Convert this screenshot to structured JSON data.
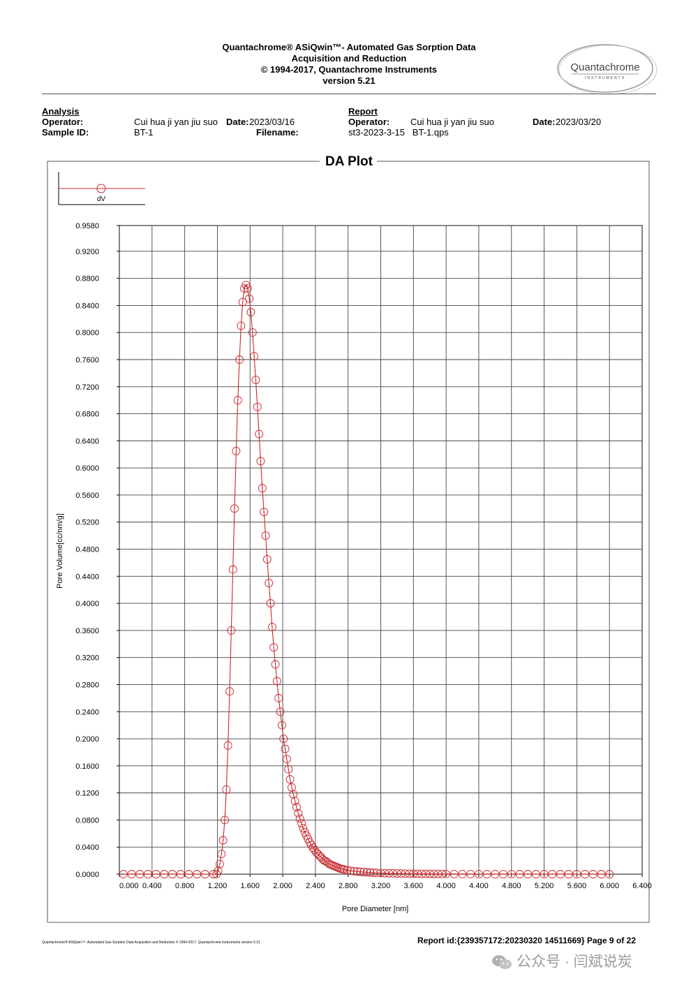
{
  "header": {
    "line1": "Quantachrome® ASiQwin™- Automated Gas Sorption Data",
    "line2": "Acquisition and Reduction",
    "line3": "© 1994-2017, Quantachrome Instruments",
    "line4": "version 5.21",
    "logo_text": "Quantachrome",
    "logo_sub": "INSTRUMENTS"
  },
  "analysis": {
    "heading": "Analysis",
    "operator_label": "Operator:",
    "operator_value": "Cui hua ji yan jiu suo",
    "date_label": "Date:",
    "date_value": "2023/03/16",
    "sample_label": "Sample ID:",
    "sample_value": "BT-1",
    "filename_label": "Filename:"
  },
  "report": {
    "heading": "Report",
    "operator_label": "Operator:",
    "operator_value": "Cui hua ji yan jiu suo",
    "date_label": "Date:",
    "date_value": "2023/03/20",
    "filename_value": "st3-2023-3-15   BT-1.qps"
  },
  "chart_data": {
    "type": "line",
    "title": "DA Plot",
    "xlabel": "Pore Diameter [nm]",
    "ylabel": "Pore Volume[cc/nm/g]",
    "legend": [
      {
        "name": "dV",
        "color": "#c8282c",
        "marker": "open-circle"
      }
    ],
    "legend_position": "top-left",
    "grid": true,
    "xlim": [
      0.0,
      6.4
    ],
    "ylim": [
      0.0,
      0.958
    ],
    "x_ticks": [
      "0.000",
      "0.400",
      "0.800",
      "1.200",
      "1.600",
      "2.000",
      "2.400",
      "2.800",
      "3.200",
      "3.600",
      "4.000",
      "4.400",
      "4.800",
      "5.200",
      "5.600",
      "6.000",
      "6.400"
    ],
    "y_ticks": [
      "0.0000",
      "0.0400",
      "0.0800",
      "0.1200",
      "0.1600",
      "0.2000",
      "0.2400",
      "0.2800",
      "0.3200",
      "0.3600",
      "0.4000",
      "0.4400",
      "0.4800",
      "0.5200",
      "0.5600",
      "0.6000",
      "0.6400",
      "0.6800",
      "0.7200",
      "0.7600",
      "0.8000",
      "0.8400",
      "0.8800",
      "0.9200",
      "0.9580"
    ],
    "series": [
      {
        "name": "dV",
        "color": "#c8282c",
        "points": [
          [
            0.05,
            0.0
          ],
          [
            0.15,
            0.0
          ],
          [
            0.25,
            0.0
          ],
          [
            0.35,
            0.0
          ],
          [
            0.45,
            0.0
          ],
          [
            0.55,
            0.0
          ],
          [
            0.65,
            0.0
          ],
          [
            0.75,
            0.0
          ],
          [
            0.85,
            0.0
          ],
          [
            0.95,
            0.0
          ],
          [
            1.05,
            0.0
          ],
          [
            1.15,
            0.0
          ],
          [
            1.19,
            0.0
          ],
          [
            1.21,
            0.005
          ],
          [
            1.23,
            0.015
          ],
          [
            1.25,
            0.03
          ],
          [
            1.27,
            0.05
          ],
          [
            1.29,
            0.08
          ],
          [
            1.31,
            0.125
          ],
          [
            1.33,
            0.19
          ],
          [
            1.35,
            0.27
          ],
          [
            1.37,
            0.36
          ],
          [
            1.39,
            0.45
          ],
          [
            1.41,
            0.54
          ],
          [
            1.43,
            0.625
          ],
          [
            1.45,
            0.7
          ],
          [
            1.47,
            0.76
          ],
          [
            1.49,
            0.81
          ],
          [
            1.51,
            0.845
          ],
          [
            1.53,
            0.865
          ],
          [
            1.55,
            0.87
          ],
          [
            1.57,
            0.865
          ],
          [
            1.59,
            0.85
          ],
          [
            1.61,
            0.83
          ],
          [
            1.63,
            0.8
          ],
          [
            1.65,
            0.765
          ],
          [
            1.67,
            0.73
          ],
          [
            1.69,
            0.69
          ],
          [
            1.71,
            0.65
          ],
          [
            1.73,
            0.61
          ],
          [
            1.75,
            0.57
          ],
          [
            1.77,
            0.535
          ],
          [
            1.79,
            0.5
          ],
          [
            1.81,
            0.465
          ],
          [
            1.83,
            0.43
          ],
          [
            1.85,
            0.4
          ],
          [
            1.87,
            0.365
          ],
          [
            1.89,
            0.335
          ],
          [
            1.91,
            0.31
          ],
          [
            1.93,
            0.285
          ],
          [
            1.95,
            0.26
          ],
          [
            1.97,
            0.24
          ],
          [
            1.99,
            0.22
          ],
          [
            2.01,
            0.2
          ],
          [
            2.03,
            0.185
          ],
          [
            2.05,
            0.17
          ],
          [
            2.07,
            0.155
          ],
          [
            2.09,
            0.14
          ],
          [
            2.11,
            0.128
          ],
          [
            2.13,
            0.118
          ],
          [
            2.15,
            0.108
          ],
          [
            2.17,
            0.099
          ],
          [
            2.19,
            0.09
          ],
          [
            2.21,
            0.082
          ],
          [
            2.23,
            0.075
          ],
          [
            2.25,
            0.068
          ],
          [
            2.27,
            0.062
          ],
          [
            2.29,
            0.057
          ],
          [
            2.31,
            0.052
          ],
          [
            2.33,
            0.047
          ],
          [
            2.35,
            0.043
          ],
          [
            2.37,
            0.039
          ],
          [
            2.39,
            0.036
          ],
          [
            2.41,
            0.032
          ],
          [
            2.43,
            0.03
          ],
          [
            2.45,
            0.027
          ],
          [
            2.47,
            0.025
          ],
          [
            2.49,
            0.022
          ],
          [
            2.51,
            0.02
          ],
          [
            2.53,
            0.019
          ],
          [
            2.55,
            0.017
          ],
          [
            2.57,
            0.015
          ],
          [
            2.59,
            0.014
          ],
          [
            2.61,
            0.013
          ],
          [
            2.63,
            0.012
          ],
          [
            2.65,
            0.011
          ],
          [
            2.67,
            0.01
          ],
          [
            2.69,
            0.009
          ],
          [
            2.71,
            0.008
          ],
          [
            2.73,
            0.0075
          ],
          [
            2.75,
            0.007
          ],
          [
            2.79,
            0.006
          ],
          [
            2.83,
            0.005
          ],
          [
            2.87,
            0.0045
          ],
          [
            2.91,
            0.004
          ],
          [
            2.95,
            0.0035
          ],
          [
            2.99,
            0.003
          ],
          [
            3.03,
            0.0027
          ],
          [
            3.07,
            0.0024
          ],
          [
            3.11,
            0.0021
          ],
          [
            3.15,
            0.0019
          ],
          [
            3.2,
            0.0017
          ],
          [
            3.25,
            0.0015
          ],
          [
            3.3,
            0.0013
          ],
          [
            3.35,
            0.0012
          ],
          [
            3.4,
            0.001
          ],
          [
            3.45,
            0.0009
          ],
          [
            3.5,
            0.0008
          ],
          [
            3.55,
            0.0007
          ],
          [
            3.6,
            0.0006
          ],
          [
            3.65,
            0.0006
          ],
          [
            3.7,
            0.0005
          ],
          [
            3.75,
            0.0005
          ],
          [
            3.8,
            0.0004
          ],
          [
            3.85,
            0.0004
          ],
          [
            3.9,
            0.0003
          ],
          [
            3.95,
            0.0003
          ],
          [
            4.0,
            0.0003
          ],
          [
            4.1,
            0.0002
          ],
          [
            4.2,
            0.0002
          ],
          [
            4.3,
            0.0002
          ],
          [
            4.4,
            0.0001
          ],
          [
            4.5,
            0.0001
          ],
          [
            4.6,
            0.0001
          ],
          [
            4.7,
            0.0001
          ],
          [
            4.8,
            0.0001
          ],
          [
            4.9,
            0.0
          ],
          [
            5.0,
            0.0
          ],
          [
            5.1,
            0.0
          ],
          [
            5.2,
            0.0
          ],
          [
            5.3,
            0.0
          ],
          [
            5.4,
            0.0
          ],
          [
            5.5,
            0.0
          ],
          [
            5.6,
            0.0
          ],
          [
            5.7,
            0.0
          ],
          [
            5.8,
            0.0
          ],
          [
            5.9,
            0.0
          ],
          [
            6.0,
            0.0
          ]
        ]
      }
    ]
  },
  "footer": {
    "small_text": "Quantachrome® ASiQwin™- Automated Gas Sorption Data Acquisition and Reduction © 1994-2017, Quantachrome Instruments version 5.21",
    "report_id": "Report id:{239357172:20230320 14511669} Page 9 of 22",
    "watermark": "公众号 · 闫斌说炭"
  }
}
